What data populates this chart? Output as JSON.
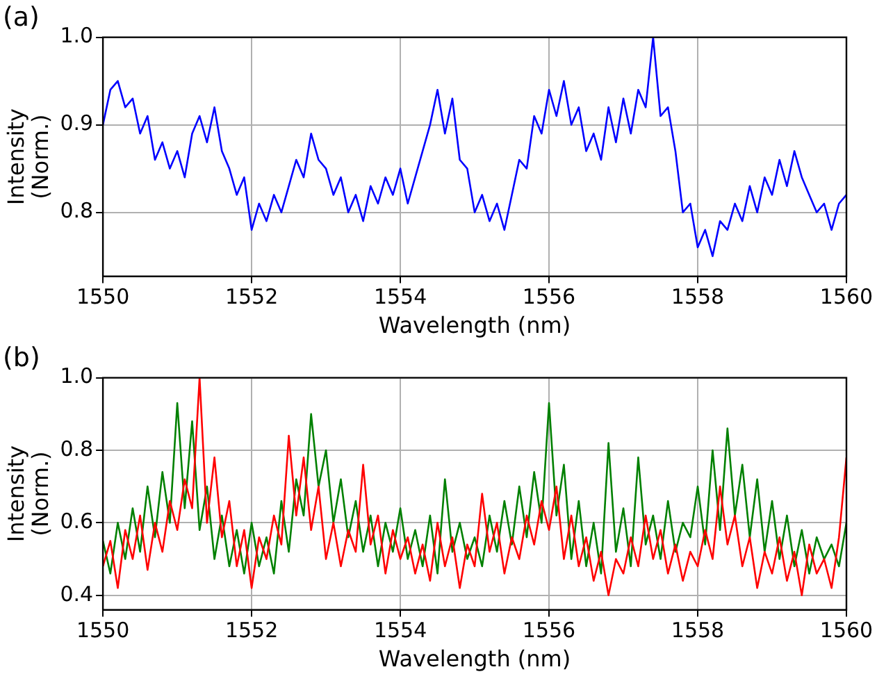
{
  "chart_data": [
    {
      "type": "line",
      "title": "(a)",
      "xlabel": "Wavelength (nm)",
      "ylabel": "Intensity\n(Norm.)",
      "x": [
        1550.0,
        1550.1,
        1550.2,
        1550.3,
        1550.4,
        1550.5,
        1550.6,
        1550.7,
        1550.8,
        1550.9,
        1551.0,
        1551.1,
        1551.2,
        1551.3,
        1551.4,
        1551.5,
        1551.6,
        1551.7,
        1551.8,
        1551.9,
        1552.0,
        1552.1,
        1552.2,
        1552.3,
        1552.4,
        1552.5,
        1552.6,
        1552.7,
        1552.8,
        1552.9,
        1553.0,
        1553.1,
        1553.2,
        1553.3,
        1553.4,
        1553.5,
        1553.6,
        1553.7,
        1553.8,
        1553.9,
        1554.0,
        1554.1,
        1554.2,
        1554.3,
        1554.4,
        1554.5,
        1554.6,
        1554.7,
        1554.8,
        1554.9,
        1555.0,
        1555.1,
        1555.2,
        1555.3,
        1555.4,
        1555.5,
        1555.6,
        1555.7,
        1555.8,
        1555.9,
        1556.0,
        1556.1,
        1556.2,
        1556.3,
        1556.4,
        1556.5,
        1556.6,
        1556.7,
        1556.8,
        1556.9,
        1557.0,
        1557.1,
        1557.2,
        1557.3,
        1557.4,
        1557.5,
        1557.6,
        1557.7,
        1557.8,
        1557.9,
        1558.0,
        1558.1,
        1558.2,
        1558.3,
        1558.4,
        1558.5,
        1558.6,
        1558.7,
        1558.8,
        1558.9,
        1559.0,
        1559.1,
        1559.2,
        1559.3,
        1559.4,
        1559.5,
        1559.6,
        1559.7,
        1559.8,
        1559.9,
        1560.0
      ],
      "series": [
        {
          "color": "#0000ff",
          "values": [
            0.9,
            0.94,
            0.95,
            0.92,
            0.93,
            0.89,
            0.91,
            0.86,
            0.88,
            0.85,
            0.87,
            0.84,
            0.89,
            0.91,
            0.88,
            0.92,
            0.87,
            0.85,
            0.82,
            0.84,
            0.78,
            0.81,
            0.79,
            0.82,
            0.8,
            0.83,
            0.86,
            0.84,
            0.89,
            0.86,
            0.85,
            0.82,
            0.84,
            0.8,
            0.82,
            0.79,
            0.83,
            0.81,
            0.84,
            0.82,
            0.85,
            0.81,
            0.84,
            0.87,
            0.9,
            0.94,
            0.89,
            0.93,
            0.86,
            0.85,
            0.8,
            0.82,
            0.79,
            0.81,
            0.78,
            0.82,
            0.86,
            0.85,
            0.91,
            0.89,
            0.94,
            0.91,
            0.95,
            0.9,
            0.92,
            0.87,
            0.89,
            0.86,
            0.92,
            0.88,
            0.93,
            0.89,
            0.94,
            0.92,
            1.0,
            0.91,
            0.92,
            0.87,
            0.8,
            0.81,
            0.76,
            0.78,
            0.75,
            0.79,
            0.78,
            0.81,
            0.79,
            0.83,
            0.8,
            0.84,
            0.82,
            0.86,
            0.83,
            0.87,
            0.84,
            0.82,
            0.8,
            0.81,
            0.78,
            0.81,
            0.82
          ]
        }
      ],
      "xlim": [
        1550,
        1560
      ],
      "xticks": [
        1550,
        1552,
        1554,
        1556,
        1558,
        1560
      ],
      "ylim": [
        0.727,
        1.0
      ],
      "yticks": [
        0.8,
        0.9,
        {
          "value": 1.0,
          "label": "1.0"
        }
      ],
      "grid": true,
      "legend": false,
      "marker": "none",
      "line_style": "solid"
    },
    {
      "type": "line",
      "title": "(b)",
      "xlabel": "Wavelength (nm)",
      "ylabel": "Intensity\n(Norm.)",
      "x": [
        1550.0,
        1550.1,
        1550.2,
        1550.3,
        1550.4,
        1550.5,
        1550.6,
        1550.7,
        1550.8,
        1550.9,
        1551.0,
        1551.1,
        1551.2,
        1551.3,
        1551.4,
        1551.5,
        1551.6,
        1551.7,
        1551.8,
        1551.9,
        1552.0,
        1552.1,
        1552.2,
        1552.3,
        1552.4,
        1552.5,
        1552.6,
        1552.7,
        1552.8,
        1552.9,
        1553.0,
        1553.1,
        1553.2,
        1553.3,
        1553.4,
        1553.5,
        1553.6,
        1553.7,
        1553.8,
        1553.9,
        1554.0,
        1554.1,
        1554.2,
        1554.3,
        1554.4,
        1554.5,
        1554.6,
        1554.7,
        1554.8,
        1554.9,
        1555.0,
        1555.1,
        1555.2,
        1555.3,
        1555.4,
        1555.5,
        1555.6,
        1555.7,
        1555.8,
        1555.9,
        1556.0,
        1556.1,
        1556.2,
        1556.3,
        1556.4,
        1556.5,
        1556.6,
        1556.7,
        1556.8,
        1556.9,
        1557.0,
        1557.1,
        1557.2,
        1557.3,
        1557.4,
        1557.5,
        1557.6,
        1557.7,
        1557.8,
        1557.9,
        1558.0,
        1558.1,
        1558.2,
        1558.3,
        1558.4,
        1558.5,
        1558.6,
        1558.7,
        1558.8,
        1558.9,
        1559.0,
        1559.1,
        1559.2,
        1559.3,
        1559.4,
        1559.5,
        1559.6,
        1559.7,
        1559.8,
        1559.9,
        1560.0
      ],
      "series": [
        {
          "color": "#ff0000",
          "values": [
            0.48,
            0.55,
            0.42,
            0.58,
            0.5,
            0.62,
            0.47,
            0.6,
            0.52,
            0.66,
            0.58,
            0.72,
            0.64,
            1.0,
            0.6,
            0.78,
            0.56,
            0.66,
            0.48,
            0.58,
            0.42,
            0.56,
            0.5,
            0.62,
            0.54,
            0.84,
            0.62,
            0.78,
            0.58,
            0.7,
            0.5,
            0.6,
            0.48,
            0.58,
            0.52,
            0.76,
            0.54,
            0.62,
            0.46,
            0.58,
            0.5,
            0.56,
            0.46,
            0.54,
            0.44,
            0.6,
            0.48,
            0.56,
            0.42,
            0.54,
            0.48,
            0.68,
            0.52,
            0.6,
            0.46,
            0.56,
            0.5,
            0.62,
            0.54,
            0.66,
            0.58,
            0.7,
            0.5,
            0.62,
            0.48,
            0.56,
            0.44,
            0.52,
            0.4,
            0.5,
            0.46,
            0.56,
            0.48,
            0.62,
            0.5,
            0.58,
            0.46,
            0.54,
            0.44,
            0.52,
            0.48,
            0.58,
            0.5,
            0.7,
            0.54,
            0.62,
            0.48,
            0.56,
            0.42,
            0.52,
            0.46,
            0.56,
            0.44,
            0.52,
            0.4,
            0.54,
            0.46,
            0.5,
            0.42,
            0.56,
            0.78
          ]
        },
        {
          "color": "#008000",
          "values": [
            0.55,
            0.46,
            0.6,
            0.5,
            0.64,
            0.52,
            0.7,
            0.56,
            0.74,
            0.6,
            0.93,
            0.64,
            0.88,
            0.58,
            0.7,
            0.5,
            0.62,
            0.48,
            0.58,
            0.46,
            0.6,
            0.48,
            0.56,
            0.46,
            0.66,
            0.52,
            0.72,
            0.62,
            0.9,
            0.7,
            0.8,
            0.6,
            0.72,
            0.56,
            0.66,
            0.52,
            0.62,
            0.48,
            0.6,
            0.52,
            0.64,
            0.5,
            0.58,
            0.48,
            0.62,
            0.46,
            0.72,
            0.52,
            0.6,
            0.5,
            0.56,
            0.48,
            0.62,
            0.52,
            0.66,
            0.54,
            0.7,
            0.56,
            0.74,
            0.6,
            0.93,
            0.62,
            0.76,
            0.5,
            0.66,
            0.48,
            0.6,
            0.46,
            0.82,
            0.52,
            0.64,
            0.48,
            0.78,
            0.54,
            0.62,
            0.5,
            0.66,
            0.52,
            0.6,
            0.56,
            0.7,
            0.54,
            0.8,
            0.58,
            0.86,
            0.62,
            0.76,
            0.56,
            0.72,
            0.52,
            0.66,
            0.5,
            0.62,
            0.48,
            0.58,
            0.46,
            0.56,
            0.5,
            0.54,
            0.48,
            0.6
          ]
        }
      ],
      "xlim": [
        1550,
        1560
      ],
      "xticks": [
        1550,
        1552,
        1554,
        1556,
        1558,
        1560
      ],
      "ylim": [
        0.36,
        1.0
      ],
      "yticks": [
        0.4,
        0.6,
        0.8,
        {
          "value": 1.0,
          "label": "1.0"
        }
      ],
      "grid": true,
      "legend": false,
      "marker": "none",
      "line_style": "solid"
    }
  ]
}
